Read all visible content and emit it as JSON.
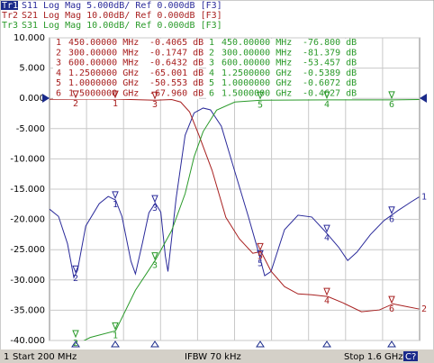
{
  "chart_data": {
    "type": "line",
    "xlim": [
      200,
      1600
    ],
    "ylim": [
      -40,
      10
    ],
    "y2lim": [
      -80,
      20
    ],
    "grid": true,
    "yticks": [
      {
        "value": 10,
        "label": "10.000"
      },
      {
        "value": 5,
        "label": "5.000"
      },
      {
        "value": 0,
        "label": "0.000"
      },
      {
        "value": -5,
        "label": "-5.000"
      },
      {
        "value": -10,
        "label": "-10.000"
      },
      {
        "value": -15,
        "label": "-15.000"
      },
      {
        "value": -20,
        "label": "-20.000"
      },
      {
        "value": -25,
        "label": "-25.000"
      },
      {
        "value": -30,
        "label": "-30.000"
      },
      {
        "value": -35,
        "label": "-35.000"
      },
      {
        "value": -40,
        "label": "-40.000"
      }
    ],
    "series": [
      {
        "trace": "Tr1",
        "name": "S11",
        "format": "Log Mag 5.000dB/ Ref 0.000dB [F3]",
        "color": "#2a2a9a",
        "axis": "y",
        "end_label": "1",
        "x": [
          200,
          234,
          268,
          292,
          306,
          337,
          388,
          422,
          450,
          474,
          508,
          525,
          552,
          576,
          600,
          621,
          638,
          648,
          679,
          713,
          747,
          781,
          809,
          850,
          901,
          952,
          986,
          1014,
          1038,
          1089,
          1140,
          1192,
          1243,
          1294,
          1328,
          1363,
          1414,
          1465,
          1516,
          1568,
          1598
        ],
        "values": [
          -18.3,
          -19.5,
          -24.0,
          -29.6,
          -28.4,
          -21.1,
          -17.4,
          -16.2,
          -16.8,
          -19.5,
          -26.9,
          -29.0,
          -23.8,
          -18.9,
          -17.3,
          -18.8,
          -26.0,
          -28.6,
          -16.5,
          -6.1,
          -2.4,
          -1.6,
          -1.9,
          -4.6,
          -12.1,
          -19.5,
          -24.7,
          -29.3,
          -28.6,
          -21.7,
          -19.3,
          -19.6,
          -22.0,
          -24.6,
          -26.8,
          -25.4,
          -22.5,
          -20.2,
          -18.6,
          -17.1,
          -16.3
        ]
      },
      {
        "trace": "Tr2",
        "name": "S21",
        "format": "Log Mag 10.00dB/ Ref 0.000dB [F3]",
        "color": "#a82020",
        "axis": "y2",
        "end_label": "2",
        "x": [
          200,
          422,
          600,
          662,
          696,
          730,
          764,
          815,
          867,
          918,
          969,
          1000,
          1038,
          1089,
          1140,
          1192,
          1253,
          1311,
          1380,
          1448,
          1500,
          1551,
          1598
        ],
        "values": [
          -0.3,
          -0.2,
          -0.6,
          -0.4,
          -1.2,
          -4.5,
          -11.9,
          -23.8,
          -39.3,
          -46.4,
          -51.2,
          -50.6,
          -57.1,
          -62.2,
          -64.6,
          -64.9,
          -65.5,
          -67.6,
          -70.5,
          -69.9,
          -67.9,
          -68.8,
          -69.6
        ],
        "markers": [
          [
            "1",
            "450.00000 MHz",
            "-0.4065 dB"
          ],
          [
            "2",
            "300.00000 MHz",
            "-0.1747 dB"
          ],
          [
            "3",
            "600.00000 MHz",
            "-0.6432 dB"
          ],
          [
            "4",
            "1.2500000 GHz",
            "-65.001 dB"
          ],
          [
            "5",
            "1.0000000 GHz",
            "-50.553 dB"
          ],
          [
            "6",
            "1.5000000 GHz",
            "-67.960 dB"
          ]
        ]
      },
      {
        "trace": "Tr3",
        "name": "S31",
        "format": "Log Mag 10.00dB/ Ref 0.000dB [F3]",
        "color": "#2a9a2a",
        "axis": "y2",
        "x": [
          200,
          300,
          354,
          450,
          525,
          600,
          662,
          713,
          747,
          781,
          832,
          901,
          1000,
          1253,
          1500,
          1598
        ],
        "values": [
          -82,
          -81.4,
          -79,
          -76.8,
          -63.4,
          -53.5,
          -43.7,
          -31.5,
          -19.3,
          -11.0,
          -3.9,
          -1.2,
          -0.6,
          -0.5,
          -0.5,
          -0.4
        ],
        "markers": [
          [
            "1",
            "450.00000 MHz",
            "-76.800 dB"
          ],
          [
            "2",
            "300.00000 MHz",
            "-81.379 dB"
          ],
          [
            "3",
            "600.00000 MHz",
            "-53.457 dB"
          ],
          [
            "4",
            "1.2500000 GHz",
            "-0.5389 dB"
          ],
          [
            "5",
            "1.0000000 GHz",
            "-0.6072 dB"
          ],
          [
            "6",
            "1.5000000 GHz",
            "-0.4627 dB"
          ]
        ]
      }
    ]
  },
  "footer": {
    "channel": "1",
    "start": "Start 200 MHz",
    "ifbw": "IFBW 70 kHz",
    "stop": "Stop 1.6 GHz",
    "status": "C?"
  }
}
